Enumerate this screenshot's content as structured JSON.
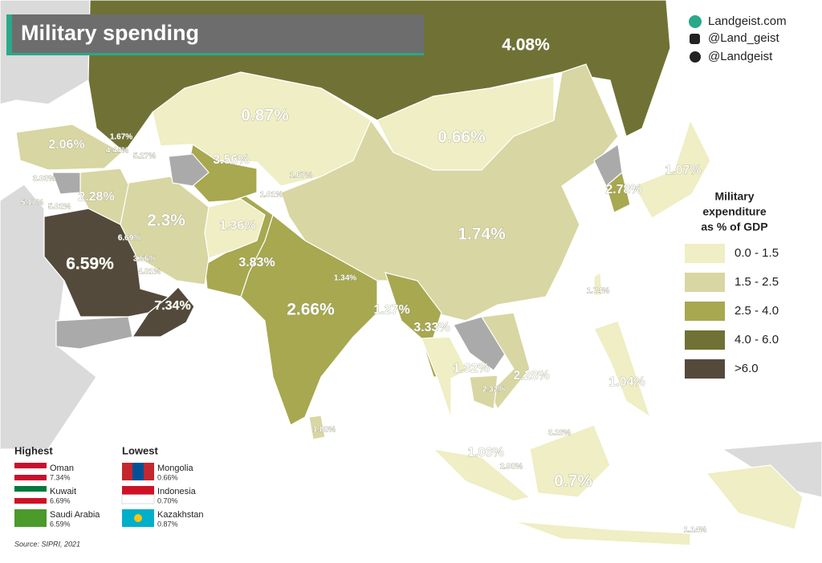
{
  "header": {
    "title": "Military spending"
  },
  "branding": [
    "Landgeist.com",
    "@Land_geist",
    "@Landgeist"
  ],
  "legend": {
    "title_lines": [
      "Military",
      "expenditure",
      "as % of GDP"
    ],
    "items": [
      {
        "label": "0.0 - 1.5",
        "color": "#efeec4"
      },
      {
        "label": "1.5 - 2.5",
        "color": "#d8d6a2"
      },
      {
        "label": "2.5 - 4.0",
        "color": "#a7a84f"
      },
      {
        "label": "4.0 - 6.0",
        "color": "#6f7234"
      },
      {
        "label": ">6.0",
        "color": "#534a3c"
      }
    ]
  },
  "map_labels": [
    "4.08%",
    "0.87%",
    "0.66%",
    "2.06%",
    "1.67%",
    "4.44%",
    "5.27%",
    "3.56%",
    "1.67%",
    "1.07%",
    "3.03%",
    "2.28%",
    "5.17%",
    "5.02%",
    "1.01%",
    "2.78%",
    "2.3%",
    "1.36%",
    "1.74%",
    "6.69%",
    "3.56%",
    "4.81%",
    "6.59%",
    "3.83%",
    "1.34%",
    "7.34%",
    "2.66%",
    "1.27%",
    "3.33%",
    "1.74%",
    "1.32%",
    "2.28%",
    "2.32%",
    "1.04%",
    "1.88%",
    "3.26%",
    "1.06%",
    "2.98%",
    "0.7%",
    "1.14%"
  ],
  "highest": {
    "title": "Highest",
    "items": [
      {
        "country": "Oman",
        "value": "7.34%"
      },
      {
        "country": "Kuwait",
        "value": "6.69%"
      },
      {
        "country": "Saudi Arabia",
        "value": "6.59%"
      }
    ]
  },
  "lowest": {
    "title": "Lowest",
    "items": [
      {
        "country": "Mongolia",
        "value": "0.66%"
      },
      {
        "country": "Indonesia",
        "value": "0.70%"
      },
      {
        "country": "Kazakhstan",
        "value": "0.87%"
      }
    ]
  },
  "source": "Source: SIPRI, 2021"
}
